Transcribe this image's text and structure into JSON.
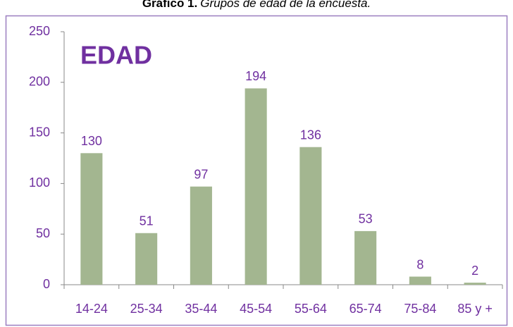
{
  "chart_data": {
    "type": "bar",
    "title_number": "Gráfico 1.",
    "title": "Grupos de edad de la encuesta.",
    "annotation": "EDAD",
    "categories": [
      "14-24",
      "25-34",
      "35-44",
      "45-54",
      "55-64",
      "65-74",
      "75-84",
      "85 y +"
    ],
    "values": [
      130,
      51,
      97,
      194,
      136,
      53,
      8,
      2
    ],
    "color": "#a3b690",
    "label_color": "#7030a0",
    "ylim": [
      0,
      250
    ],
    "yticks": [
      0,
      50,
      100,
      150,
      200,
      250
    ],
    "grid": false
  }
}
